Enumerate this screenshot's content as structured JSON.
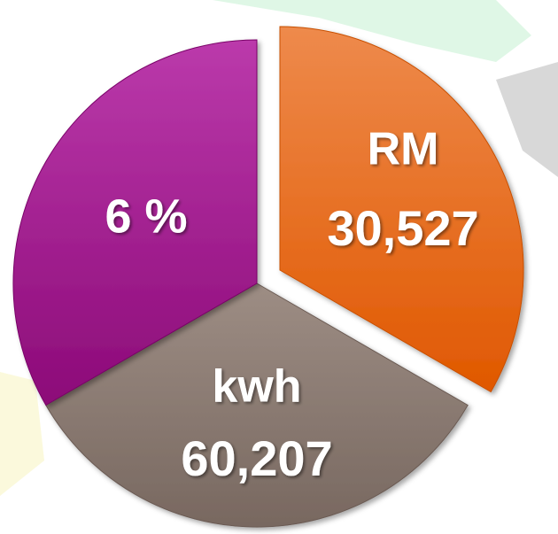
{
  "segments": [
    {
      "lines": [
        "RM",
        "30,527"
      ]
    },
    {
      "lines": [
        "kwh",
        "60,207"
      ]
    },
    {
      "lines": [
        "6 %"
      ]
    }
  ]
}
